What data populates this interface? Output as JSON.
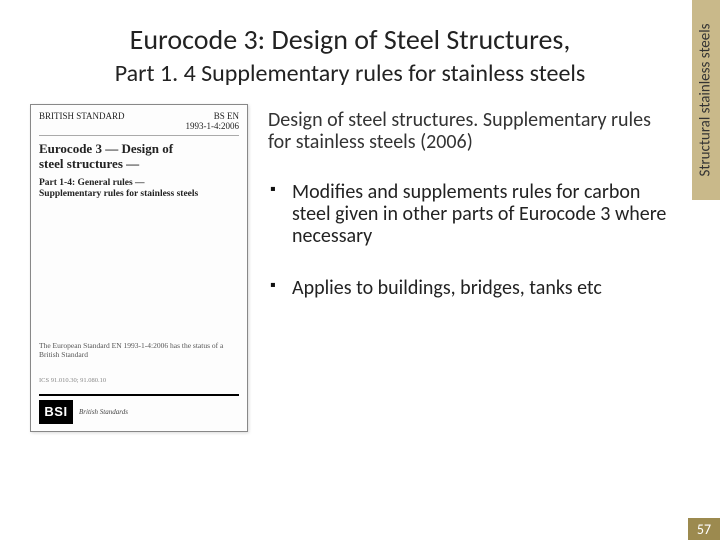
{
  "colors": {
    "sidebar_bg": "#c9b98a",
    "page_num_bg": "#9c8a4f",
    "page_num_fg": "#ffffff",
    "text": "#222222"
  },
  "sidebar": {
    "label": "Structural stainless steels"
  },
  "title": {
    "main": "Eurocode 3: Design of Steel Structures,",
    "sub": "Part 1. 4 Supplementary rules for stainless steels"
  },
  "cover": {
    "org": "BRITISH STANDARD",
    "code": "BS EN\n1993-1-4:2006",
    "doc_title": "Eurocode 3 — Design of\nsteel structures —",
    "part": "Part 1-4: General rules —\nSupplementary rules for stainless steels",
    "euro_note": "The European Standard EN 1993-1-4:2006 has the status of a\nBritish Standard",
    "ics": "ICS 91.010.30; 91.080.10",
    "logo_text": "BSI",
    "logo_label": "British Standards"
  },
  "description": "Design of steel structures. Supplementary rules for stainless steels (2006)",
  "bullets": [
    "Modifies and supplements rules for carbon steel given in other parts of Eurocode 3 where necessary",
    "Applies to buildings, bridges, tanks etc"
  ],
  "page_number": "57"
}
